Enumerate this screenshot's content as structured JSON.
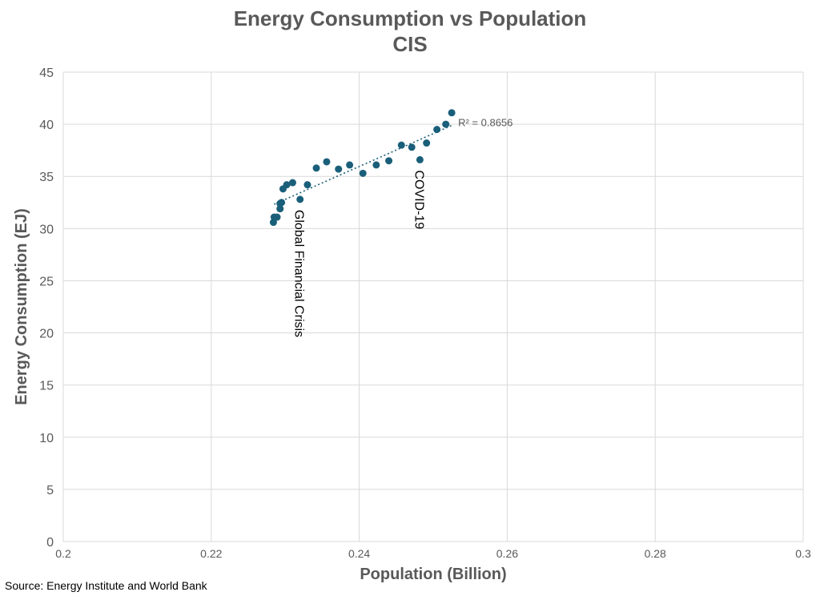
{
  "chart_data": {
    "type": "scatter",
    "title": "Energy Consumption vs Population",
    "subtitle": "CIS",
    "xlabel": "Population (Billion)",
    "ylabel": "Energy Consumption (EJ)",
    "xlim": [
      0.2,
      0.3
    ],
    "ylim": [
      0,
      45
    ],
    "xticks": [
      0.2,
      0.22,
      0.24,
      0.26,
      0.28,
      0.3
    ],
    "xtick_labels": [
      "0.2",
      "0.22",
      "0.24",
      "0.26",
      "0.28",
      "0.3"
    ],
    "yticks": [
      0,
      5,
      10,
      15,
      20,
      25,
      30,
      35,
      40,
      45
    ],
    "ytick_labels": [
      "0",
      "5",
      "10",
      "15",
      "20",
      "25",
      "30",
      "35",
      "40",
      "45"
    ],
    "grid": true,
    "marker_color": "#1a5f7a",
    "trendline": {
      "type": "linear",
      "style": "dotted",
      "color": "#1a5f7a",
      "r_squared_label": "R² = 0.8656",
      "x_range": [
        0.2285,
        0.2525
      ]
    },
    "points": [
      {
        "x": 0.2284,
        "y": 30.6
      },
      {
        "x": 0.2285,
        "y": 31.1
      },
      {
        "x": 0.2289,
        "y": 31.1
      },
      {
        "x": 0.2293,
        "y": 31.9
      },
      {
        "x": 0.2293,
        "y": 32.4
      },
      {
        "x": 0.2295,
        "y": 32.5
      },
      {
        "x": 0.2297,
        "y": 33.8
      },
      {
        "x": 0.2302,
        "y": 34.2
      },
      {
        "x": 0.231,
        "y": 34.4
      },
      {
        "x": 0.232,
        "y": 32.8
      },
      {
        "x": 0.233,
        "y": 34.2
      },
      {
        "x": 0.2342,
        "y": 35.8
      },
      {
        "x": 0.2356,
        "y": 36.4
      },
      {
        "x": 0.2372,
        "y": 35.7
      },
      {
        "x": 0.2387,
        "y": 36.1
      },
      {
        "x": 0.2405,
        "y": 35.3
      },
      {
        "x": 0.2423,
        "y": 36.1
      },
      {
        "x": 0.244,
        "y": 36.5
      },
      {
        "x": 0.2457,
        "y": 38.0
      },
      {
        "x": 0.2471,
        "y": 37.8
      },
      {
        "x": 0.2482,
        "y": 36.6
      },
      {
        "x": 0.2491,
        "y": 38.2
      },
      {
        "x": 0.2505,
        "y": 39.5
      },
      {
        "x": 0.2517,
        "y": 40.0
      },
      {
        "x": 0.2525,
        "y": 41.1
      }
    ],
    "annotations": [
      {
        "text": "Global Financial Crisis",
        "x": 0.232,
        "y": 31.8,
        "rotation": 90
      },
      {
        "text": "COVID-19",
        "x": 0.2482,
        "y": 35.6,
        "rotation": 90
      }
    ]
  },
  "source": "Source: Energy Institute and World Bank"
}
